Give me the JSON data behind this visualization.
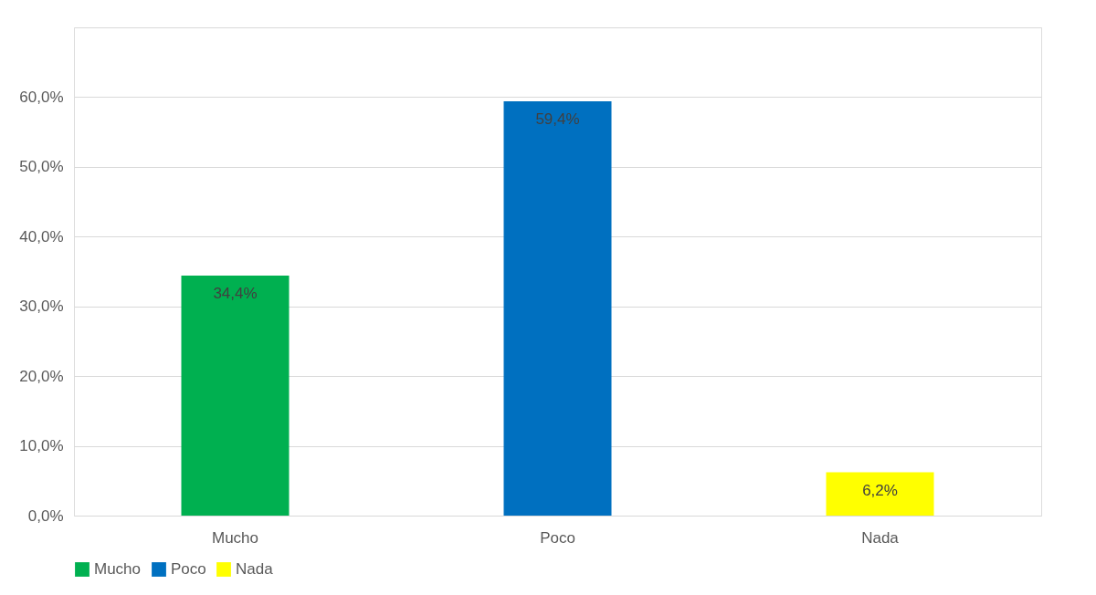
{
  "chart_data": {
    "type": "bar",
    "categories": [
      "Mucho",
      "Poco",
      "Nada"
    ],
    "series": [
      {
        "name": "Mucho",
        "color": "#00b050",
        "values": [
          34.4,
          null,
          null
        ],
        "value_labels": [
          "34,4%",
          null,
          null
        ]
      },
      {
        "name": "Poco",
        "color": "#0070c0",
        "values": [
          null,
          59.4,
          null
        ],
        "value_labels": [
          null,
          "59,4%",
          null
        ]
      },
      {
        "name": "Nada",
        "color": "#ffff00",
        "values": [
          null,
          null,
          6.2
        ],
        "value_labels": [
          null,
          null,
          "6,2%"
        ]
      }
    ],
    "ylim": [
      0,
      70
    ],
    "yticks": [
      {
        "value": 0,
        "label": "0,0%"
      },
      {
        "value": 10,
        "label": "10,0%"
      },
      {
        "value": 20,
        "label": "20,0%"
      },
      {
        "value": 30,
        "label": "30,0%"
      },
      {
        "value": 40,
        "label": "40,0%"
      },
      {
        "value": 50,
        "label": "50,0%"
      },
      {
        "value": 60,
        "label": "60,0%"
      },
      {
        "value": 70,
        "label": null
      }
    ],
    "grid": "y",
    "legend": "bottom"
  }
}
